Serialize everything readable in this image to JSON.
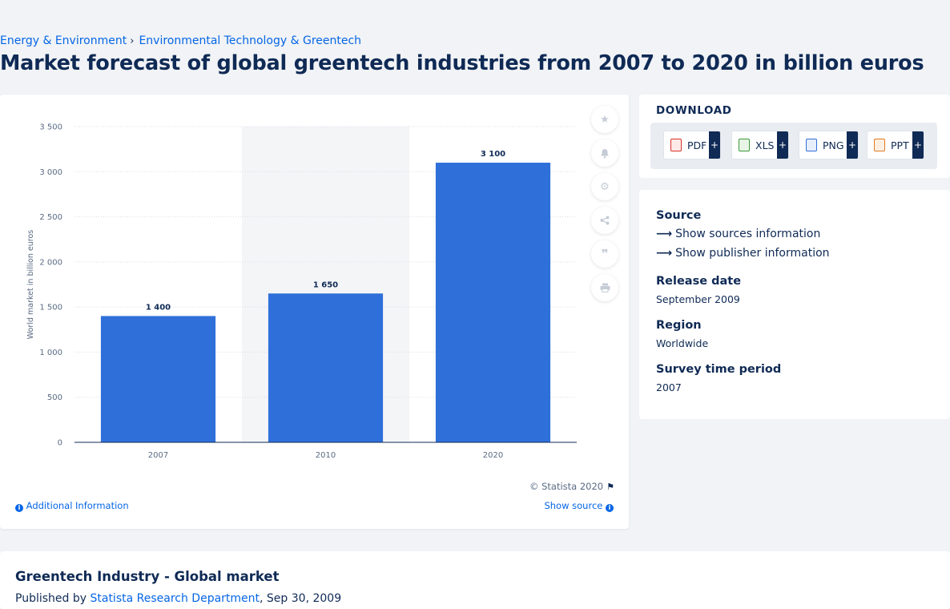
{
  "breadcrumb": {
    "items": [
      "Energy & Environment",
      "Environmental Technology & Greentech"
    ],
    "separator": "›"
  },
  "page_title": "Market forecast of global greentech industries from 2007 to 2020 in billion euros",
  "chart_data": {
    "type": "bar",
    "title": "Market forecast of global greentech industries from 2007 to 2020 in billion euros",
    "categories": [
      "2007",
      "2010",
      "2020"
    ],
    "values": [
      1400,
      1650,
      3100
    ],
    "data_labels": [
      "1 400",
      "1 650",
      "3 100"
    ],
    "xlabel": "",
    "ylabel": "World market in billion euros",
    "ylim": [
      0,
      3500
    ],
    "yticks": [
      0,
      500,
      1000,
      1500,
      2000,
      2500,
      3000,
      3500
    ],
    "ytick_labels": [
      "0",
      "500",
      "1 000",
      "1 500",
      "2 000",
      "2 500",
      "3 000",
      "3 500"
    ],
    "grid": true,
    "highlighted_category": "2010",
    "bar_color": "#2f6fd9"
  },
  "chart_tools": [
    "star-icon",
    "bell-icon",
    "gear-icon",
    "share-icon",
    "quote-icon",
    "print-icon"
  ],
  "chart_footer": {
    "copyright": "© Statista 2020",
    "additional_info": "Additional Information",
    "show_source": "Show source"
  },
  "download": {
    "title": "DOWNLOAD",
    "buttons": [
      {
        "label": "PDF",
        "icon": "pdf-file-icon",
        "color": "#d9342b"
      },
      {
        "label": "XLS",
        "icon": "xls-file-icon",
        "color": "#3a9a3a"
      },
      {
        "label": "PNG",
        "icon": "png-file-icon",
        "color": "#2f6fd9"
      },
      {
        "label": "PPT",
        "icon": "ppt-file-icon",
        "color": "#e07a1f"
      }
    ],
    "plus": "+"
  },
  "meta": {
    "source_label": "Source",
    "show_sources": "Show sources information",
    "show_publisher": "Show publisher information",
    "release_label": "Release date",
    "release_value": "September 2009",
    "region_label": "Region",
    "region_value": "Worldwide",
    "period_label": "Survey time period",
    "period_value": "2007"
  },
  "bottom": {
    "title": "Greentech Industry - Global market",
    "published_prefix": "Published by",
    "publisher": "Statista Research Department",
    "date": ", Sep 30, 2009"
  },
  "colors": {
    "accent": "#0666e5",
    "text": "#0f2a55",
    "bar": "#2f6fd9"
  }
}
